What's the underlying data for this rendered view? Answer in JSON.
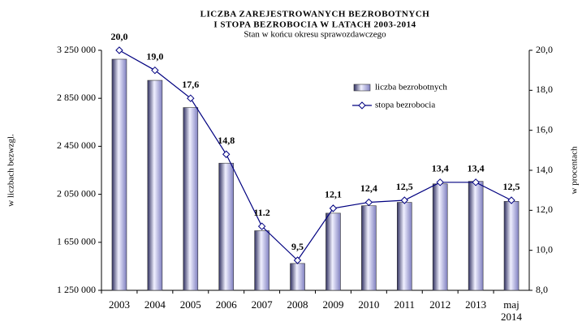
{
  "chart_data": {
    "type": "bar",
    "title_lines": [
      "LICZBA  ZAREJESTROWANYCH   BEZROBOTNYCH",
      "I  STOPA  BEZROBOCIA  W  LATACH  2003-2014"
    ],
    "subtitle": "Stan w końcu okresu  sprawozdawczego",
    "y_label": "w liczbach bezwzgl.",
    "y2_label": "w procentach",
    "categories": [
      "2003",
      "2004",
      "2005",
      "2006",
      "2007",
      "2008",
      "2009",
      "2010",
      "2011",
      "2012",
      "2013",
      "maj 2014"
    ],
    "series": [
      {
        "name": "liczba bezrobotnych",
        "type": "bar",
        "axis": "y",
        "color": "#8080c0",
        "values": [
          3175700,
          2999600,
          2773000,
          2309400,
          1746600,
          1473800,
          1892700,
          1954700,
          1982700,
          2136800,
          2157900,
          1991000
        ]
      },
      {
        "name": "stopa bezrobocia",
        "type": "line",
        "axis": "y2",
        "color": "#000080",
        "values": [
          20.0,
          19.0,
          17.6,
          14.8,
          11.2,
          9.5,
          12.1,
          12.4,
          12.5,
          13.4,
          13.4,
          12.5
        ],
        "value_labels": [
          "20,0",
          "19,0",
          "17,6",
          "14,8",
          "11.2",
          "9,5",
          "12,1",
          "12,4",
          "12,5",
          "13,4",
          "13,4",
          "12,5"
        ]
      }
    ],
    "ylim": [
      1250000,
      3250000
    ],
    "yticks": [
      {
        "value": 1250000,
        "label": "1 250 000"
      },
      {
        "value": 1650000,
        "label": "1 650 000"
      },
      {
        "value": 2050000,
        "label": "2 050 000"
      },
      {
        "value": 2450000,
        "label": "2 450 000"
      },
      {
        "value": 2850000,
        "label": "2 850 000"
      },
      {
        "value": 3250000,
        "label": "3 250 000"
      }
    ],
    "y2lim": [
      8.0,
      20.0
    ],
    "y2ticks": [
      {
        "value": 8.0,
        "label": "8,0"
      },
      {
        "value": 10.0,
        "label": "10,0"
      },
      {
        "value": 12.0,
        "label": "12,0"
      },
      {
        "value": 14.0,
        "label": "14,0"
      },
      {
        "value": 16.0,
        "label": "16,0"
      },
      {
        "value": 18.0,
        "label": "18,0"
      },
      {
        "value": 20.0,
        "label": "20,0"
      }
    ],
    "legend": "upper right",
    "grid": false
  }
}
